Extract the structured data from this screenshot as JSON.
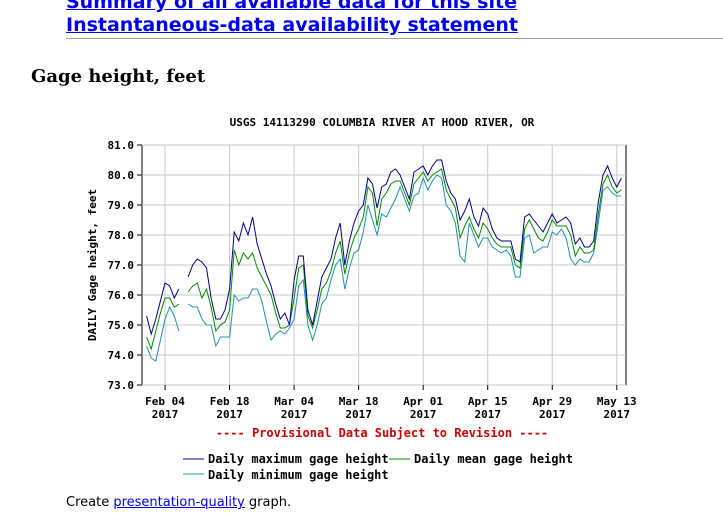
{
  "links": [
    {
      "label": "Summary of all available data for this site"
    },
    {
      "label": "Instantaneous-data availability statement"
    }
  ],
  "section_title": "Gage height, feet",
  "footer": {
    "prefix": "Create ",
    "link": "presentation-quality",
    "suffix": " graph."
  },
  "chart_data": {
    "type": "line",
    "title": "USGS 14113290 COLUMBIA RIVER AT HOOD RIVER, OR",
    "ylabel": "DAILY Gage height, feet",
    "xlabel": "",
    "ylim": [
      73.0,
      81.0
    ],
    "yticks": [
      "73.0",
      "74.0",
      "75.0",
      "76.0",
      "77.0",
      "78.0",
      "79.0",
      "80.0",
      "81.0"
    ],
    "xlim": [
      "2017-01-30",
      "2017-05-15"
    ],
    "xticks": [
      {
        "date": "2017-02-04",
        "label1": "Feb 04",
        "label2": "2017"
      },
      {
        "date": "2017-02-18",
        "label1": "Feb 18",
        "label2": "2017"
      },
      {
        "date": "2017-03-04",
        "label1": "Mar 04",
        "label2": "2017"
      },
      {
        "date": "2017-03-18",
        "label1": "Mar 18",
        "label2": "2017"
      },
      {
        "date": "2017-04-01",
        "label1": "Apr 01",
        "label2": "2017"
      },
      {
        "date": "2017-04-15",
        "label1": "Apr 15",
        "label2": "2017"
      },
      {
        "date": "2017-04-29",
        "label1": "Apr 29",
        "label2": "2017"
      },
      {
        "date": "2017-05-13",
        "label1": "May 13",
        "label2": "2017"
      }
    ],
    "grid": true,
    "provisional_note": "---- Provisional Data Subject to Revision ----",
    "legend_position": "bottom",
    "x": [
      "2017-01-31",
      "2017-02-01",
      "2017-02-02",
      "2017-02-03",
      "2017-02-04",
      "2017-02-05",
      "2017-02-06",
      "2017-02-07",
      "2017-02-08",
      "2017-02-09",
      "2017-02-10",
      "2017-02-11",
      "2017-02-12",
      "2017-02-13",
      "2017-02-14",
      "2017-02-15",
      "2017-02-16",
      "2017-02-17",
      "2017-02-18",
      "2017-02-19",
      "2017-02-20",
      "2017-02-21",
      "2017-02-22",
      "2017-02-23",
      "2017-02-24",
      "2017-02-25",
      "2017-02-26",
      "2017-02-27",
      "2017-02-28",
      "2017-03-01",
      "2017-03-02",
      "2017-03-03",
      "2017-03-04",
      "2017-03-05",
      "2017-03-06",
      "2017-03-07",
      "2017-03-08",
      "2017-03-09",
      "2017-03-10",
      "2017-03-11",
      "2017-03-12",
      "2017-03-13",
      "2017-03-14",
      "2017-03-15",
      "2017-03-16",
      "2017-03-17",
      "2017-03-18",
      "2017-03-19",
      "2017-03-20",
      "2017-03-21",
      "2017-03-22",
      "2017-03-23",
      "2017-03-24",
      "2017-03-25",
      "2017-03-26",
      "2017-03-27",
      "2017-03-28",
      "2017-03-29",
      "2017-03-30",
      "2017-03-31",
      "2017-04-01",
      "2017-04-02",
      "2017-04-03",
      "2017-04-04",
      "2017-04-05",
      "2017-04-06",
      "2017-04-07",
      "2017-04-08",
      "2017-04-09",
      "2017-04-10",
      "2017-04-11",
      "2017-04-12",
      "2017-04-13",
      "2017-04-14",
      "2017-04-15",
      "2017-04-16",
      "2017-04-17",
      "2017-04-18",
      "2017-04-19",
      "2017-04-20",
      "2017-04-21",
      "2017-04-22",
      "2017-04-23",
      "2017-04-24",
      "2017-04-25",
      "2017-04-26",
      "2017-04-27",
      "2017-04-28",
      "2017-04-29",
      "2017-04-30",
      "2017-05-01",
      "2017-05-02",
      "2017-05-03",
      "2017-05-04",
      "2017-05-05",
      "2017-05-06",
      "2017-05-07",
      "2017-05-08",
      "2017-05-09",
      "2017-05-10",
      "2017-05-11",
      "2017-05-12",
      "2017-05-13",
      "2017-05-14"
    ],
    "series": [
      {
        "name": "Daily maximum gage height",
        "color": "#00008b",
        "values": [
          75.3,
          74.7,
          75.2,
          75.8,
          76.4,
          76.3,
          75.9,
          76.2,
          null,
          76.6,
          77.0,
          77.2,
          77.1,
          76.9,
          75.9,
          75.2,
          75.2,
          75.5,
          76.2,
          78.1,
          77.8,
          78.4,
          78.0,
          78.6,
          77.7,
          77.2,
          76.7,
          76.3,
          75.7,
          75.2,
          75.4,
          75.0,
          76.5,
          77.3,
          77.3,
          75.5,
          75.0,
          75.8,
          76.6,
          76.9,
          77.2,
          77.9,
          78.4,
          77.0,
          77.8,
          78.4,
          78.8,
          79.0,
          79.9,
          79.7,
          78.9,
          79.6,
          79.7,
          80.1,
          80.2,
          80.0,
          79.6,
          79.2,
          80.1,
          80.2,
          80.3,
          80.0,
          80.3,
          80.5,
          80.5,
          79.8,
          79.4,
          79.2,
          78.5,
          78.8,
          79.2,
          78.6,
          78.3,
          78.9,
          78.7,
          78.2,
          77.9,
          77.8,
          77.8,
          77.8,
          77.2,
          77.1,
          78.6,
          78.7,
          78.5,
          78.3,
          78.1,
          78.4,
          78.7,
          78.4,
          78.5,
          78.6,
          78.4,
          77.7,
          77.9,
          77.6,
          77.6,
          77.8,
          79.1,
          80.0,
          80.3,
          79.9,
          79.6,
          79.9
        ]
      },
      {
        "name": "Daily mean gage height",
        "color": "#008b00",
        "values": [
          74.6,
          74.2,
          74.8,
          75.4,
          75.9,
          75.9,
          75.6,
          75.7,
          null,
          76.1,
          76.3,
          76.4,
          75.9,
          76.2,
          75.6,
          74.8,
          75.0,
          75.1,
          75.5,
          77.5,
          77.0,
          77.4,
          77.2,
          77.4,
          76.9,
          76.6,
          76.3,
          76.0,
          75.4,
          74.9,
          74.9,
          75.0,
          75.9,
          76.9,
          77.0,
          75.3,
          74.9,
          75.5,
          76.2,
          76.4,
          76.8,
          77.4,
          77.8,
          76.7,
          77.4,
          77.9,
          78.2,
          78.6,
          79.6,
          79.4,
          78.3,
          79.2,
          79.4,
          79.7,
          79.8,
          79.8,
          79.4,
          79.0,
          79.7,
          79.9,
          80.1,
          79.8,
          80.0,
          80.1,
          80.2,
          79.5,
          79.2,
          78.9,
          77.9,
          78.3,
          78.6,
          78.2,
          77.9,
          78.4,
          78.2,
          77.9,
          77.7,
          77.6,
          77.6,
          77.6,
          77.0,
          76.9,
          78.2,
          78.5,
          78.2,
          77.9,
          77.8,
          78.1,
          78.5,
          78.3,
          78.3,
          78.3,
          78.0,
          77.3,
          77.6,
          77.4,
          77.4,
          77.5,
          78.7,
          79.7,
          80.0,
          79.6,
          79.4,
          79.5
        ]
      },
      {
        "name": "Daily minimum gage height",
        "color": "#1e90b4",
        "values": [
          74.3,
          73.9,
          73.8,
          74.5,
          75.2,
          75.6,
          75.3,
          74.8,
          null,
          75.7,
          75.6,
          75.6,
          75.2,
          75.0,
          75.0,
          74.3,
          74.6,
          74.6,
          74.6,
          76.0,
          75.8,
          75.9,
          75.9,
          76.2,
          76.2,
          75.8,
          75.1,
          74.5,
          74.7,
          74.8,
          74.7,
          74.9,
          75.2,
          76.3,
          76.5,
          75.0,
          74.5,
          75.0,
          75.7,
          75.9,
          76.5,
          77.0,
          77.2,
          76.2,
          76.9,
          77.4,
          77.5,
          78.1,
          79.0,
          78.5,
          78.0,
          78.7,
          78.6,
          78.9,
          79.2,
          79.6,
          79.2,
          78.8,
          79.3,
          79.4,
          79.9,
          79.5,
          79.8,
          80.0,
          79.9,
          79.0,
          78.8,
          78.4,
          77.3,
          77.1,
          78.4,
          78.0,
          77.6,
          77.9,
          77.9,
          77.6,
          77.5,
          77.4,
          77.5,
          77.3,
          76.6,
          76.6,
          77.9,
          78.0,
          77.4,
          77.5,
          77.6,
          77.6,
          78.1,
          78.0,
          78.2,
          77.9,
          77.2,
          77.0,
          77.2,
          77.1,
          77.1,
          77.4,
          78.4,
          79.5,
          79.6,
          79.4,
          79.3,
          79.3
        ]
      }
    ]
  }
}
